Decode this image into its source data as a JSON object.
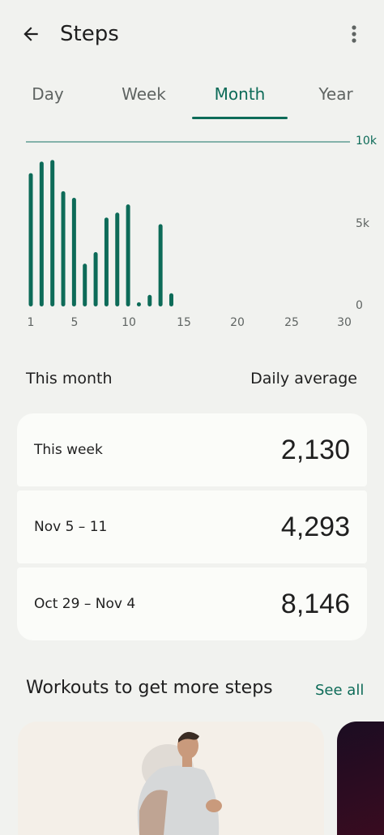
{
  "header": {
    "title": "Steps",
    "back_icon": "arrow-back-icon",
    "menu_icon": "more-vert-icon"
  },
  "tabs": [
    {
      "label": "Day"
    },
    {
      "label": "Week"
    },
    {
      "label": "Month",
      "active": true
    },
    {
      "label": "Year"
    }
  ],
  "chart_data": {
    "type": "bar",
    "x": [
      1,
      2,
      3,
      4,
      5,
      6,
      7,
      8,
      9,
      10,
      11,
      12,
      13,
      14
    ],
    "values": [
      8100,
      8800,
      8900,
      7000,
      6600,
      2600,
      3300,
      5400,
      5700,
      6200,
      250,
      700,
      5000,
      800
    ],
    "ylim": [
      0,
      10000
    ],
    "goal": 10000,
    "yticks": [
      "10k",
      "5k",
      "0"
    ],
    "xticks": [
      "1",
      "5",
      "10",
      "15",
      "20",
      "25",
      "30"
    ],
    "xlim": [
      1,
      30
    ],
    "bar_color": "#0d6b58",
    "goal_line_color": "#84b3aa"
  },
  "summary": {
    "left_label": "This month",
    "right_label": "Daily average"
  },
  "weeks": [
    {
      "label": "This week",
      "value": "2,130"
    },
    {
      "label": "Nov 5 – 11",
      "value": "4,293"
    },
    {
      "label": "Oct 29 – Nov 4",
      "value": "8,146"
    }
  ],
  "workouts": {
    "title": "Workouts to get more steps",
    "see_all": "See all"
  },
  "colors": {
    "accent": "#0d6b58",
    "background": "#f1f2ef",
    "card": "#fbfcf9"
  }
}
